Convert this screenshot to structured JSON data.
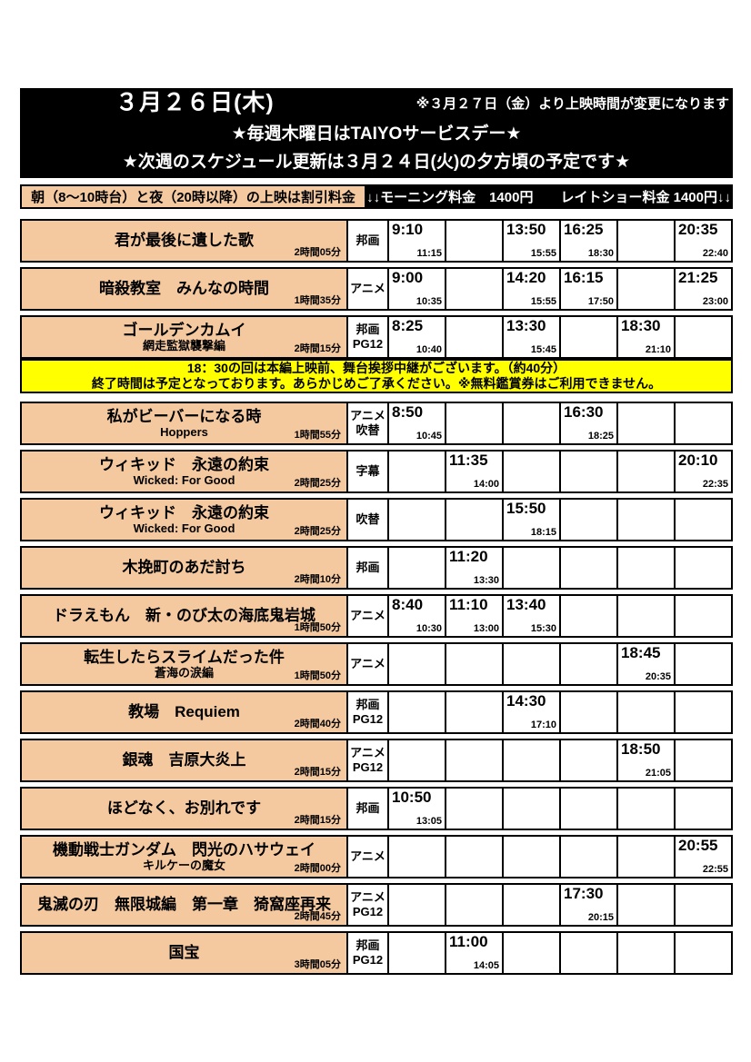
{
  "colors": {
    "peach": "#F5C9A0",
    "yellow": "#FFFF00",
    "header_bg": "#000000"
  },
  "header": {
    "date": "３月２６日(木)",
    "change_notice": "※３月２７日（金）より上映時間が変更になります",
    "service_day": "★毎週木曜日はTAIYOサービスデー★",
    "update_notice": "★次週のスケジュール更新は３月２４日(火)の夕方頃の予定です★"
  },
  "price_bar": {
    "discount_info": "朝（8～10時台）と夜（20時以降）の上映は割引料金",
    "price_info": "↓↓モーニング料金　1400円　　レイトショー料金 1400円↓↓"
  },
  "movies": [
    {
      "title": "君が最後に遺した歌",
      "subtitle": "",
      "duration": "2時間05分",
      "genre": [
        "邦画"
      ],
      "cells": [
        {
          "start": "9:10",
          "end": "11:15"
        },
        null,
        {
          "start": "13:50",
          "end": "15:55"
        },
        {
          "start": "16:25",
          "end": "18:30"
        },
        null,
        {
          "start": "20:35",
          "end": "22:40"
        }
      ]
    },
    {
      "title": "暗殺教室　みんなの時間",
      "subtitle": "",
      "duration": "1時間35分",
      "genre": [
        "アニメ"
      ],
      "cells": [
        {
          "start": "9:00",
          "end": "10:35"
        },
        null,
        {
          "start": "14:20",
          "end": "15:55"
        },
        {
          "start": "16:15",
          "end": "17:50"
        },
        null,
        {
          "start": "21:25",
          "end": "23:00"
        }
      ]
    },
    {
      "title": "ゴールデンカムイ",
      "subtitle": "網走監獄襲撃編",
      "duration": "2時間15分",
      "genre": [
        "邦画",
        "PG12"
      ],
      "cells": [
        {
          "start": "8:25",
          "end": "10:40"
        },
        null,
        {
          "start": "13:30",
          "end": "15:45"
        },
        null,
        {
          "start": "18:30",
          "end": "21:10"
        },
        null
      ],
      "banner": {
        "line1": "18：30の回は本編上映前、舞台挨拶中継がございます。（約40分）",
        "line2": "終了時間は予定となっております。あらかじめご了承ください。※無料鑑賞券はご利用できません。"
      }
    },
    {
      "title": "私がビーバーになる時",
      "subtitle": "Hoppers",
      "duration": "1時間55分",
      "genre": [
        "アニメ",
        "吹替"
      ],
      "cells": [
        {
          "start": "8:50",
          "end": "10:45"
        },
        null,
        null,
        {
          "start": "16:30",
          "end": "18:25"
        },
        null,
        null
      ]
    },
    {
      "title": "ウィキッド　永遠の約束",
      "subtitle": "Wicked: For Good",
      "duration": "2時間25分",
      "genre": [
        "字幕"
      ],
      "cells": [
        null,
        {
          "start": "11:35",
          "end": "14:00"
        },
        null,
        null,
        null,
        {
          "start": "20:10",
          "end": "22:35"
        }
      ]
    },
    {
      "title": "ウィキッド　永遠の約束",
      "subtitle": "Wicked: For Good",
      "duration": "2時間25分",
      "genre": [
        "吹替"
      ],
      "cells": [
        null,
        null,
        {
          "start": "15:50",
          "end": "18:15"
        },
        null,
        null,
        null
      ]
    },
    {
      "title": "木挽町のあだ討ち",
      "subtitle": "",
      "duration": "2時間10分",
      "genre": [
        "邦画"
      ],
      "cells": [
        null,
        {
          "start": "11:20",
          "end": "13:30"
        },
        null,
        null,
        null,
        null
      ]
    },
    {
      "title": "ドラえもん　新・のび太の海底鬼岩城",
      "subtitle": "",
      "duration": "1時間50分",
      "genre": [
        "アニメ"
      ],
      "cells": [
        {
          "start": "8:40",
          "end": "10:30"
        },
        {
          "start": "11:10",
          "end": "13:00"
        },
        {
          "start": "13:40",
          "end": "15:30"
        },
        null,
        null,
        null
      ]
    },
    {
      "title": "転生したらスライムだった件",
      "subtitle": "蒼海の涙編",
      "duration": "1時間50分",
      "genre": [
        "アニメ"
      ],
      "cells": [
        null,
        null,
        null,
        null,
        {
          "start": "18:45",
          "end": "20:35"
        },
        null
      ]
    },
    {
      "title": "教場　Requiem",
      "subtitle": "",
      "duration": "2時間40分",
      "genre": [
        "邦画",
        "PG12"
      ],
      "cells": [
        null,
        null,
        {
          "start": "14:30",
          "end": "17:10"
        },
        null,
        null,
        null
      ]
    },
    {
      "title": "銀魂　吉原大炎上",
      "subtitle": "",
      "duration": "2時間15分",
      "genre": [
        "アニメ",
        "PG12"
      ],
      "cells": [
        null,
        null,
        null,
        null,
        {
          "start": "18:50",
          "end": "21:05"
        },
        null
      ]
    },
    {
      "title": "ほどなく、お別れです",
      "subtitle": "",
      "duration": "2時間15分",
      "genre": [
        "邦画"
      ],
      "cells": [
        {
          "start": "10:50",
          "end": "13:05"
        },
        null,
        null,
        null,
        null,
        null
      ]
    },
    {
      "title": "機動戦士ガンダム　閃光のハサウェイ",
      "subtitle": "キルケーの魔女",
      "duration": "2時間00分",
      "genre": [
        "アニメ"
      ],
      "cells": [
        null,
        null,
        null,
        null,
        null,
        {
          "start": "20:55",
          "end": "22:55"
        }
      ]
    },
    {
      "title": "鬼滅の刃　無限城編　第一章　猗窩座再来",
      "subtitle": "",
      "duration": "2時間45分",
      "genre": [
        "アニメ",
        "PG12"
      ],
      "cells": [
        null,
        null,
        null,
        {
          "start": "17:30",
          "end": "20:15"
        },
        null,
        null
      ]
    },
    {
      "title": "国宝",
      "subtitle": "",
      "duration": "3時間05分",
      "genre": [
        "邦画",
        "PG12"
      ],
      "cells": [
        null,
        {
          "start": "11:00",
          "end": "14:05"
        },
        null,
        null,
        null,
        null
      ]
    }
  ]
}
